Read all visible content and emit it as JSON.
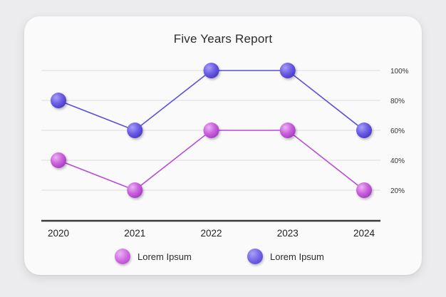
{
  "chart_data": {
    "type": "line",
    "title": "Five Years Report",
    "categories": [
      "2020",
      "2021",
      "2022",
      "2023",
      "2024"
    ],
    "y_ticks": [
      "20%",
      "40%",
      "60%",
      "80%",
      "100%"
    ],
    "ylim": [
      0,
      100
    ],
    "y_axis_side": "right",
    "grid": true,
    "legend_position": "bottom",
    "series": [
      {
        "name": "Lorem Ipsum",
        "color": "#5b4fdc",
        "values": [
          80,
          60,
          100,
          100,
          60
        ]
      },
      {
        "name": "Lorem Ipsum",
        "color": "#b94bd6",
        "values": [
          40,
          20,
          60,
          60,
          20
        ]
      }
    ]
  },
  "legend": [
    {
      "label": "Lorem Ipsum",
      "color": "#c35ad8"
    },
    {
      "label": "Lorem Ipsum",
      "color": "#6556e0"
    }
  ]
}
